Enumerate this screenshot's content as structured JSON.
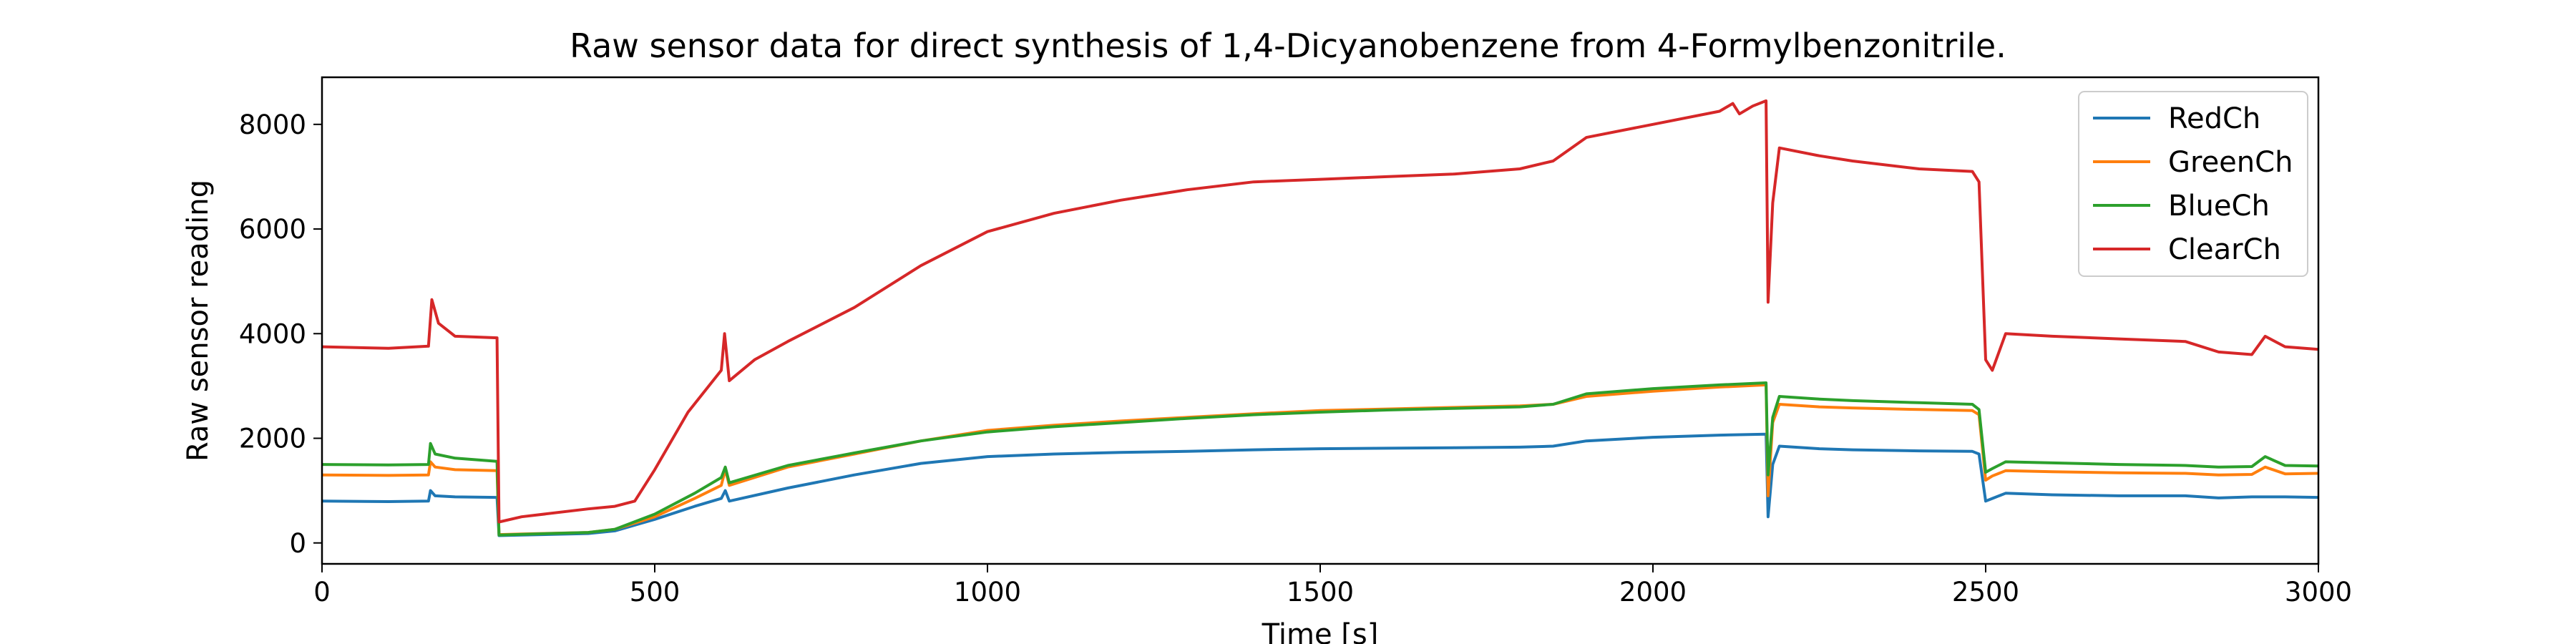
{
  "chart_data": {
    "type": "line",
    "title": "Raw sensor data for direct synthesis of 1,4-Dicyanobenzene from 4-Formylbenzonitrile.",
    "xlabel": "Time [s]",
    "ylabel": "Raw sensor reading",
    "xlim": [
      0,
      3000
    ],
    "ylim": [
      -400,
      8900
    ],
    "xticks": [
      0,
      500,
      1000,
      1500,
      2000,
      2500,
      3000
    ],
    "yticks": [
      0,
      2000,
      4000,
      6000,
      8000
    ],
    "grid": false,
    "legend_position": "top-right",
    "series": [
      {
        "name": "RedCh",
        "color": "#1f77b4",
        "points": [
          [
            0,
            800
          ],
          [
            100,
            790
          ],
          [
            160,
            800
          ],
          [
            163,
            1000
          ],
          [
            170,
            900
          ],
          [
            200,
            880
          ],
          [
            263,
            870
          ],
          [
            266,
            140
          ],
          [
            300,
            150
          ],
          [
            400,
            180
          ],
          [
            440,
            230
          ],
          [
            500,
            450
          ],
          [
            560,
            700
          ],
          [
            600,
            850
          ],
          [
            606,
            1000
          ],
          [
            612,
            800
          ],
          [
            700,
            1050
          ],
          [
            800,
            1300
          ],
          [
            900,
            1520
          ],
          [
            1000,
            1650
          ],
          [
            1100,
            1700
          ],
          [
            1200,
            1730
          ],
          [
            1300,
            1750
          ],
          [
            1400,
            1780
          ],
          [
            1500,
            1800
          ],
          [
            1600,
            1810
          ],
          [
            1700,
            1820
          ],
          [
            1800,
            1830
          ],
          [
            1850,
            1850
          ],
          [
            1900,
            1950
          ],
          [
            2000,
            2020
          ],
          [
            2100,
            2060
          ],
          [
            2170,
            2080
          ],
          [
            2173,
            500
          ],
          [
            2180,
            1500
          ],
          [
            2190,
            1850
          ],
          [
            2250,
            1800
          ],
          [
            2300,
            1780
          ],
          [
            2400,
            1760
          ],
          [
            2480,
            1750
          ],
          [
            2490,
            1700
          ],
          [
            2500,
            800
          ],
          [
            2510,
            850
          ],
          [
            2530,
            950
          ],
          [
            2600,
            920
          ],
          [
            2700,
            900
          ],
          [
            2800,
            900
          ],
          [
            2850,
            860
          ],
          [
            2900,
            880
          ],
          [
            2950,
            880
          ],
          [
            3000,
            870
          ]
        ]
      },
      {
        "name": "GreenCh",
        "color": "#ff7f0e",
        "points": [
          [
            0,
            1300
          ],
          [
            100,
            1290
          ],
          [
            160,
            1300
          ],
          [
            163,
            1550
          ],
          [
            170,
            1450
          ],
          [
            200,
            1400
          ],
          [
            263,
            1380
          ],
          [
            266,
            160
          ],
          [
            300,
            170
          ],
          [
            400,
            200
          ],
          [
            440,
            260
          ],
          [
            500,
            500
          ],
          [
            560,
            850
          ],
          [
            600,
            1100
          ],
          [
            606,
            1400
          ],
          [
            612,
            1100
          ],
          [
            700,
            1450
          ],
          [
            800,
            1700
          ],
          [
            900,
            1950
          ],
          [
            1000,
            2150
          ],
          [
            1100,
            2250
          ],
          [
            1200,
            2330
          ],
          [
            1300,
            2400
          ],
          [
            1400,
            2470
          ],
          [
            1500,
            2530
          ],
          [
            1600,
            2560
          ],
          [
            1700,
            2590
          ],
          [
            1800,
            2620
          ],
          [
            1850,
            2650
          ],
          [
            1900,
            2800
          ],
          [
            2000,
            2900
          ],
          [
            2100,
            2980
          ],
          [
            2170,
            3020
          ],
          [
            2173,
            900
          ],
          [
            2180,
            2300
          ],
          [
            2190,
            2650
          ],
          [
            2250,
            2600
          ],
          [
            2300,
            2580
          ],
          [
            2400,
            2550
          ],
          [
            2480,
            2530
          ],
          [
            2490,
            2450
          ],
          [
            2500,
            1200
          ],
          [
            2510,
            1280
          ],
          [
            2530,
            1380
          ],
          [
            2600,
            1360
          ],
          [
            2700,
            1340
          ],
          [
            2800,
            1330
          ],
          [
            2850,
            1300
          ],
          [
            2900,
            1310
          ],
          [
            2920,
            1450
          ],
          [
            2950,
            1320
          ],
          [
            3000,
            1330
          ]
        ]
      },
      {
        "name": "BlueCh",
        "color": "#2ca02c",
        "points": [
          [
            0,
            1500
          ],
          [
            100,
            1490
          ],
          [
            160,
            1500
          ],
          [
            163,
            1900
          ],
          [
            170,
            1700
          ],
          [
            200,
            1620
          ],
          [
            263,
            1560
          ],
          [
            266,
            150
          ],
          [
            300,
            165
          ],
          [
            400,
            200
          ],
          [
            440,
            260
          ],
          [
            500,
            550
          ],
          [
            560,
            950
          ],
          [
            600,
            1250
          ],
          [
            606,
            1450
          ],
          [
            612,
            1150
          ],
          [
            700,
            1480
          ],
          [
            800,
            1720
          ],
          [
            900,
            1950
          ],
          [
            1000,
            2120
          ],
          [
            1100,
            2220
          ],
          [
            1200,
            2300
          ],
          [
            1300,
            2380
          ],
          [
            1400,
            2450
          ],
          [
            1500,
            2500
          ],
          [
            1600,
            2540
          ],
          [
            1700,
            2570
          ],
          [
            1800,
            2600
          ],
          [
            1850,
            2650
          ],
          [
            1900,
            2850
          ],
          [
            2000,
            2950
          ],
          [
            2100,
            3020
          ],
          [
            2170,
            3060
          ],
          [
            2173,
            1300
          ],
          [
            2180,
            2400
          ],
          [
            2190,
            2800
          ],
          [
            2250,
            2750
          ],
          [
            2300,
            2720
          ],
          [
            2400,
            2680
          ],
          [
            2480,
            2650
          ],
          [
            2490,
            2550
          ],
          [
            2500,
            1350
          ],
          [
            2510,
            1420
          ],
          [
            2530,
            1550
          ],
          [
            2600,
            1530
          ],
          [
            2700,
            1500
          ],
          [
            2800,
            1480
          ],
          [
            2850,
            1450
          ],
          [
            2900,
            1460
          ],
          [
            2920,
            1650
          ],
          [
            2950,
            1480
          ],
          [
            3000,
            1470
          ]
        ]
      },
      {
        "name": "ClearCh",
        "color": "#d62728",
        "points": [
          [
            0,
            3750
          ],
          [
            100,
            3720
          ],
          [
            160,
            3760
          ],
          [
            165,
            4650
          ],
          [
            175,
            4200
          ],
          [
            200,
            3950
          ],
          [
            263,
            3920
          ],
          [
            266,
            400
          ],
          [
            300,
            500
          ],
          [
            400,
            650
          ],
          [
            440,
            700
          ],
          [
            470,
            800
          ],
          [
            500,
            1400
          ],
          [
            550,
            2500
          ],
          [
            600,
            3300
          ],
          [
            605,
            4000
          ],
          [
            612,
            3100
          ],
          [
            650,
            3500
          ],
          [
            700,
            3850
          ],
          [
            800,
            4500
          ],
          [
            900,
            5300
          ],
          [
            1000,
            5950
          ],
          [
            1100,
            6300
          ],
          [
            1200,
            6550
          ],
          [
            1300,
            6750
          ],
          [
            1400,
            6900
          ],
          [
            1500,
            6950
          ],
          [
            1600,
            7000
          ],
          [
            1700,
            7050
          ],
          [
            1800,
            7150
          ],
          [
            1850,
            7300
          ],
          [
            1900,
            7750
          ],
          [
            2000,
            8000
          ],
          [
            2100,
            8250
          ],
          [
            2120,
            8400
          ],
          [
            2130,
            8200
          ],
          [
            2150,
            8350
          ],
          [
            2170,
            8450
          ],
          [
            2173,
            4600
          ],
          [
            2180,
            6500
          ],
          [
            2190,
            7550
          ],
          [
            2250,
            7400
          ],
          [
            2300,
            7300
          ],
          [
            2400,
            7150
          ],
          [
            2480,
            7100
          ],
          [
            2490,
            6900
          ],
          [
            2500,
            3500
          ],
          [
            2510,
            3300
          ],
          [
            2530,
            4000
          ],
          [
            2600,
            3950
          ],
          [
            2700,
            3900
          ],
          [
            2800,
            3850
          ],
          [
            2850,
            3650
          ],
          [
            2900,
            3600
          ],
          [
            2920,
            3950
          ],
          [
            2950,
            3750
          ],
          [
            3000,
            3700
          ]
        ]
      }
    ]
  }
}
